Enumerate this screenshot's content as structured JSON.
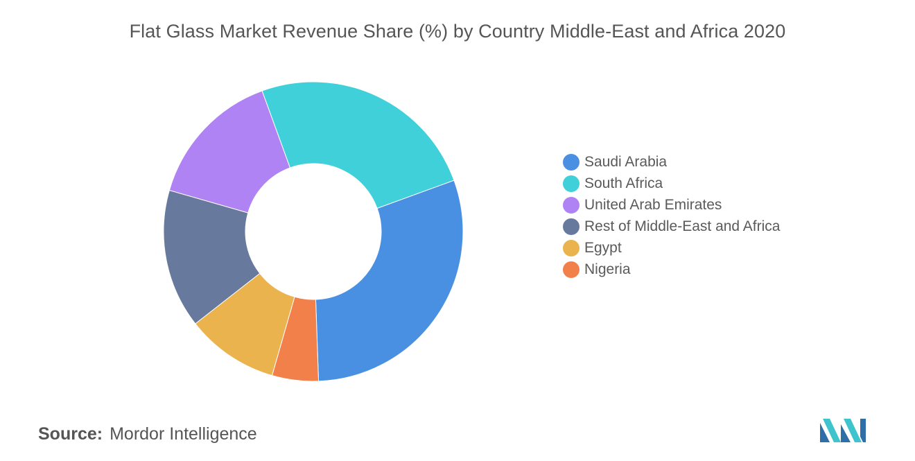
{
  "title": "Flat Glass Market Revenue Share (%) by Country Middle-East and Africa 2020",
  "source": {
    "label": "Source:",
    "value": "Mordor Intelligence"
  },
  "logo_icon": "mordor-intelligence-logo",
  "chart_data": {
    "type": "pie",
    "donut": true,
    "title": "Flat Glass Market Revenue Share (%) by Country Middle-East and Africa 2020",
    "legend_position": "right",
    "start_angle_deg": -20,
    "direction": "clockwise",
    "series": [
      {
        "name": "Saudi Arabia",
        "value": 30,
        "color": "#4a90e2"
      },
      {
        "name": "Nigeria",
        "value": 5,
        "color": "#f2804a"
      },
      {
        "name": "Egypt",
        "value": 10,
        "color": "#eab34e"
      },
      {
        "name": "Rest of Middle-East and Africa",
        "value": 15,
        "color": "#67799c"
      },
      {
        "name": "United Arab Emirates",
        "value": 15,
        "color": "#b083f5"
      },
      {
        "name": "South Africa",
        "value": 25,
        "color": "#40d0d9"
      }
    ],
    "legend_order": [
      "Saudi Arabia",
      "South Africa",
      "United Arab Emirates",
      "Rest of Middle-East and Africa",
      "Egypt",
      "Nigeria"
    ]
  }
}
